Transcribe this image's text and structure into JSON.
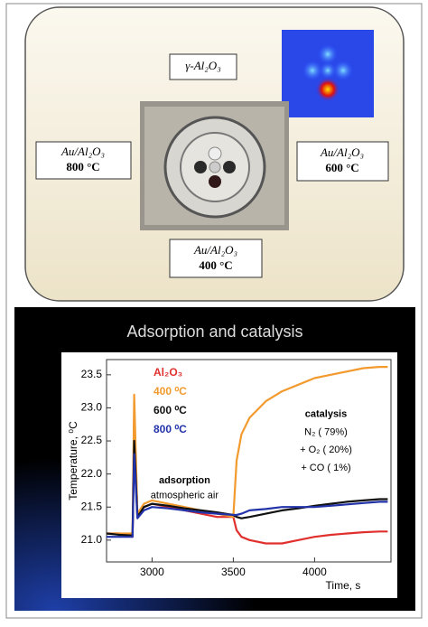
{
  "panel": {
    "support_label": "γ-Al₂O₃",
    "samples": [
      {
        "name": "Au/Al₂O₃",
        "temp": "800 °C"
      },
      {
        "name": "Au/Al₂O₃",
        "temp": "600 °C"
      },
      {
        "name": "Au/Al₂O₃",
        "temp": "400 °C"
      }
    ]
  },
  "chart_data": {
    "type": "line",
    "title": "Adsorption and catalysis",
    "x_label": "Time, s",
    "y_label": "Temperature, ⁰C",
    "x": [
      2720,
      2800,
      2880,
      2890,
      2910,
      2950,
      3000,
      3100,
      3200,
      3300,
      3400,
      3500,
      3520,
      3550,
      3600,
      3700,
      3800,
      3900,
      4000,
      4100,
      4200,
      4300,
      4400,
      4450
    ],
    "series": [
      {
        "name": "Al₂O₃",
        "color": "#e0302e",
        "values": [
          21.1,
          21.1,
          21.05,
          22.9,
          21.35,
          21.5,
          21.55,
          21.5,
          21.45,
          21.4,
          21.35,
          21.35,
          21.15,
          21.05,
          21.0,
          20.95,
          20.95,
          21.0,
          21.05,
          21.08,
          21.1,
          21.12,
          21.13,
          21.13
        ]
      },
      {
        "name": "400 ⁰C",
        "color": "#f29a2e",
        "values": [
          21.1,
          21.1,
          21.1,
          23.2,
          21.4,
          21.55,
          21.6,
          21.55,
          21.5,
          21.45,
          21.4,
          21.35,
          22.2,
          22.6,
          22.85,
          23.1,
          23.25,
          23.35,
          23.45,
          23.5,
          23.55,
          23.6,
          23.62,
          23.62
        ]
      },
      {
        "name": "600 ⁰C",
        "color": "#111111",
        "values": [
          21.1,
          21.08,
          21.07,
          22.5,
          21.35,
          21.5,
          21.55,
          21.52,
          21.48,
          21.45,
          21.42,
          21.38,
          21.35,
          21.33,
          21.35,
          21.4,
          21.45,
          21.48,
          21.52,
          21.55,
          21.58,
          21.6,
          21.62,
          21.62
        ]
      },
      {
        "name": "800 ⁰C",
        "color": "#2233aa",
        "values": [
          21.05,
          21.05,
          21.05,
          22.3,
          21.33,
          21.45,
          21.5,
          21.48,
          21.45,
          21.42,
          21.4,
          21.38,
          21.38,
          21.4,
          21.45,
          21.47,
          21.5,
          21.5,
          21.5,
          21.52,
          21.54,
          21.56,
          21.58,
          21.58
        ]
      }
    ],
    "xlim": [
      2720,
      4470
    ],
    "ylim": [
      20.67,
      23.73
    ],
    "xticks": [
      3000,
      3500,
      4000
    ],
    "yticks": [
      {
        "value": 21.0,
        "label": "21.0"
      },
      21.5,
      {
        "value": 22.0,
        "label": "22.0"
      },
      22.5,
      {
        "value": 23.0,
        "label": "23.0"
      },
      23.5
    ],
    "grid": false,
    "annotations": [
      {
        "text": "adsorption",
        "x": 3200,
        "y": 21.9
      },
      {
        "text": "atmospheric air",
        "x": 3200,
        "y": 21.67
      },
      {
        "text": "catalysis",
        "x": 4070,
        "y": 22.9
      },
      {
        "text": "N₂ ( 79%)",
        "x": 4070,
        "y": 22.63
      },
      {
        "text": "+ O₂ ( 20%)",
        "x": 4070,
        "y": 22.36
      },
      {
        "text": "+ CO ( 1%)",
        "x": 4070,
        "y": 22.09
      }
    ]
  }
}
